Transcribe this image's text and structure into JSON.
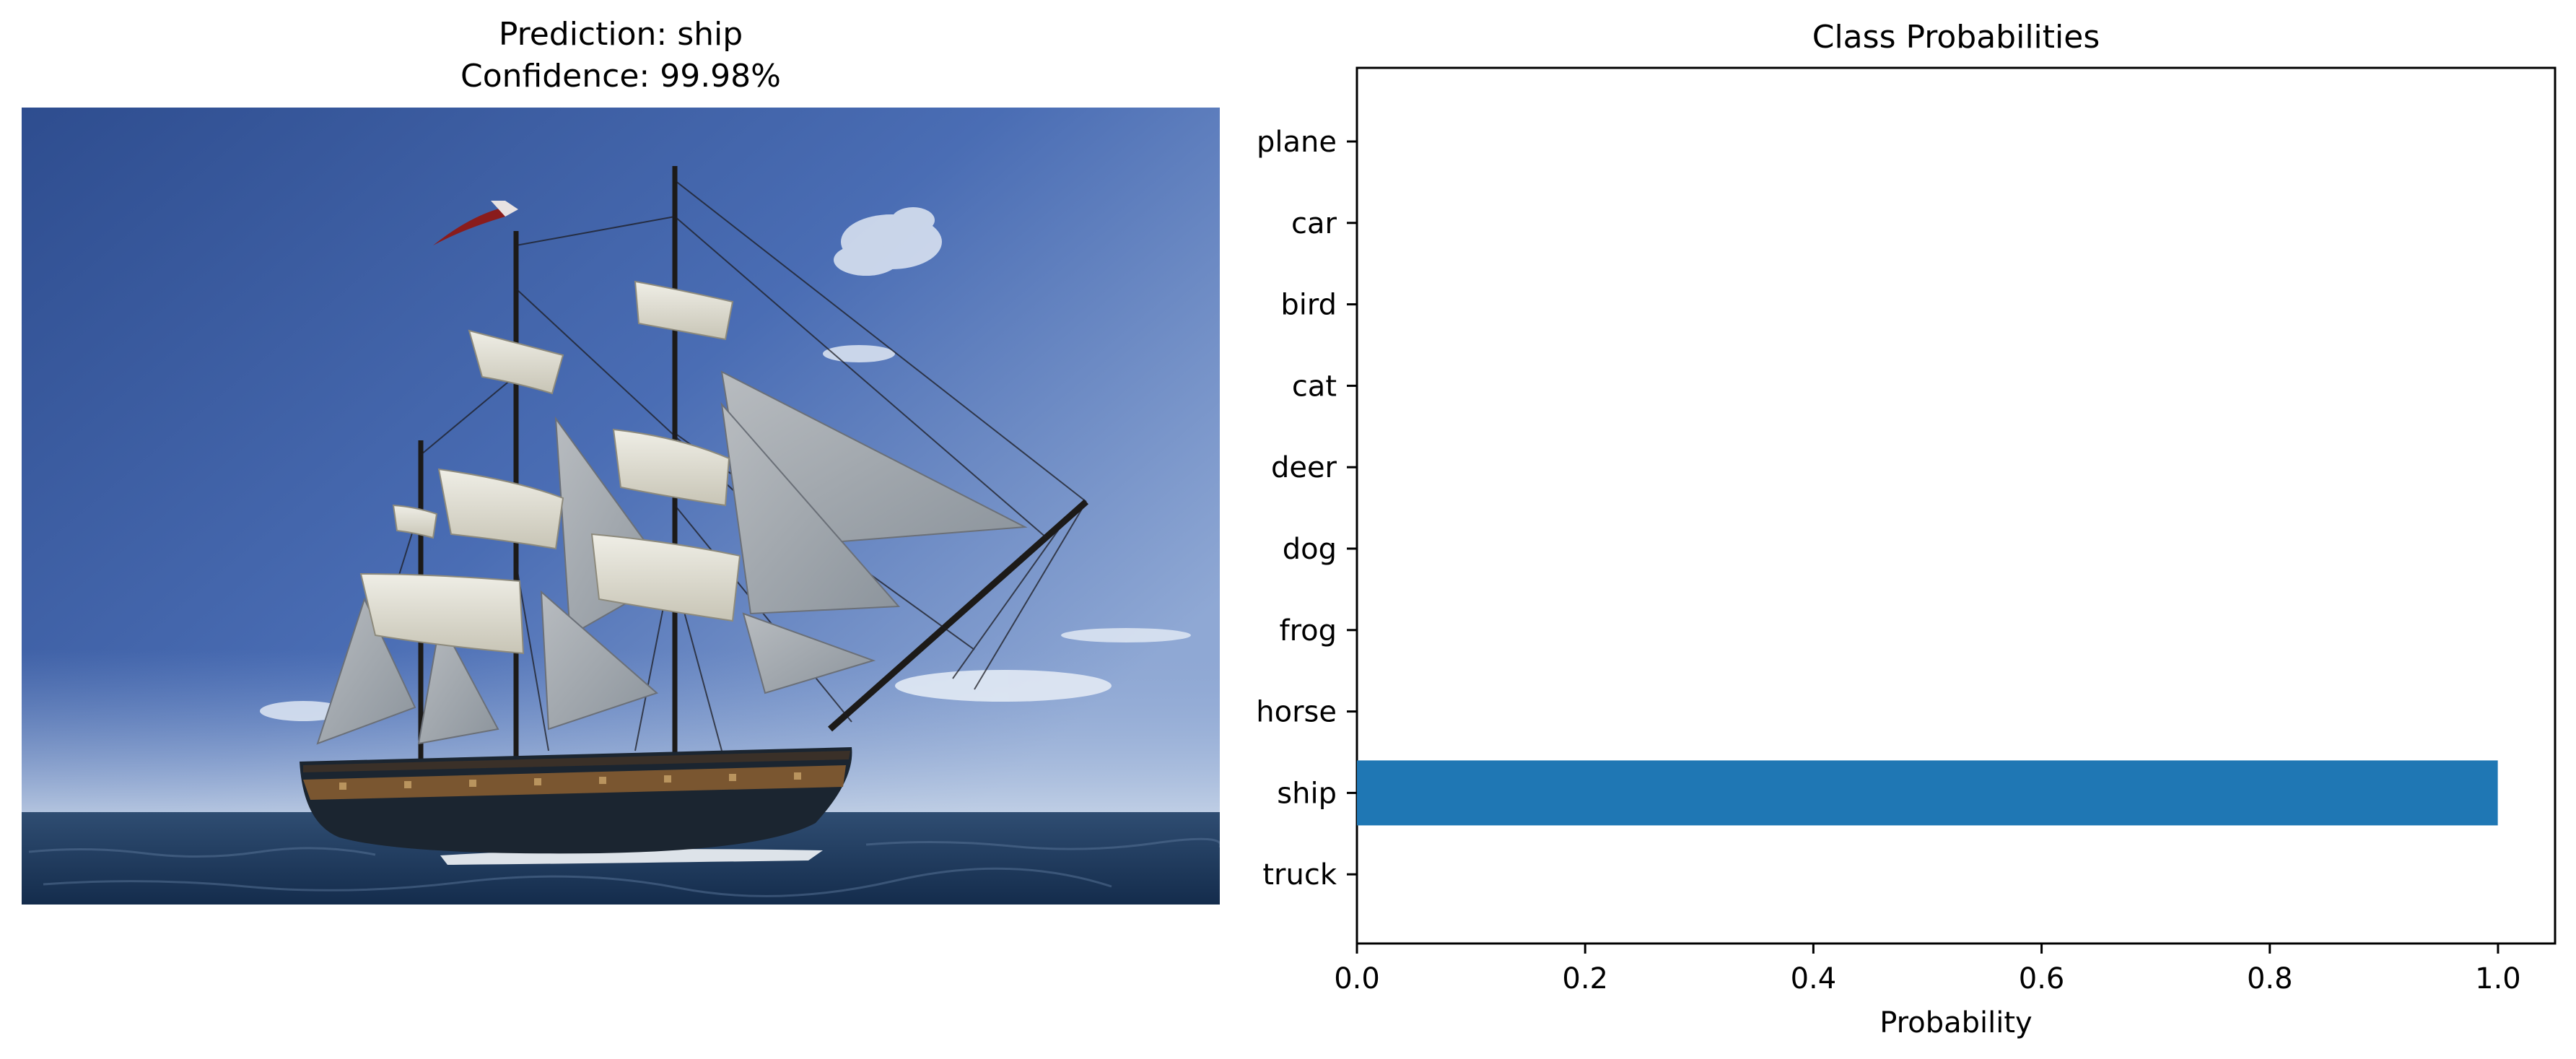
{
  "photo_panel": {
    "title_line1": "Prediction: ship",
    "title_line2": "Confidence: 99.98%",
    "subject": "tall-ship-photo"
  },
  "chart_data": {
    "type": "bar",
    "orientation": "horizontal",
    "title": "Class Probabilities",
    "xlabel": "Probability",
    "ylabel": "",
    "categories": [
      "plane",
      "car",
      "bird",
      "cat",
      "deer",
      "dog",
      "frog",
      "horse",
      "ship",
      "truck"
    ],
    "values": [
      0,
      0,
      0,
      0,
      0,
      0,
      0,
      0,
      0.9998,
      0
    ],
    "xlim": [
      0,
      1.05
    ],
    "xticks": [
      0.0,
      0.2,
      0.4,
      0.6,
      0.8,
      1.0
    ],
    "xtick_labels": [
      "0.0",
      "0.2",
      "0.4",
      "0.6",
      "0.8",
      "1.0"
    ],
    "grid": false,
    "bar_color": "#1f77b4"
  }
}
